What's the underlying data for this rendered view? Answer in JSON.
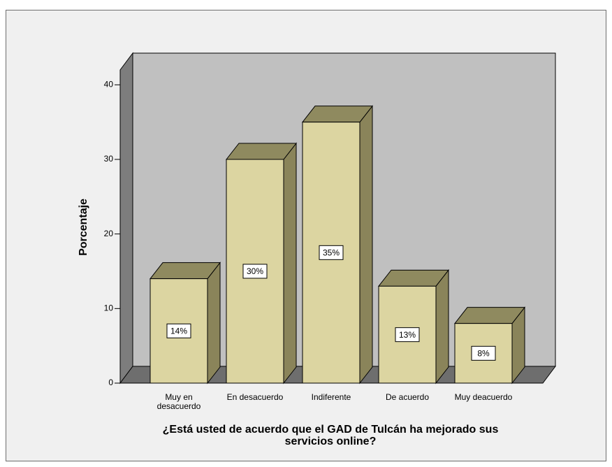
{
  "chart_data": {
    "type": "bar3d",
    "x_label": "¿Está usted de acuerdo que el GAD de Tulcán ha mejorado sus servicios online?",
    "y_label": "Porcentaje",
    "categories": [
      "Muy en desacuerdo",
      "En desacuerdo",
      "Indiferente",
      "De acuerdo",
      "Muy deacuerdo"
    ],
    "values": [
      14,
      30,
      35,
      13,
      8
    ],
    "value_labels": [
      "14%",
      "30%",
      "35%",
      "13%",
      "8%"
    ],
    "color": "#dcd5a1",
    "ylim": [
      0,
      42
    ],
    "yticks": [
      0,
      10,
      20,
      30,
      40
    ]
  }
}
